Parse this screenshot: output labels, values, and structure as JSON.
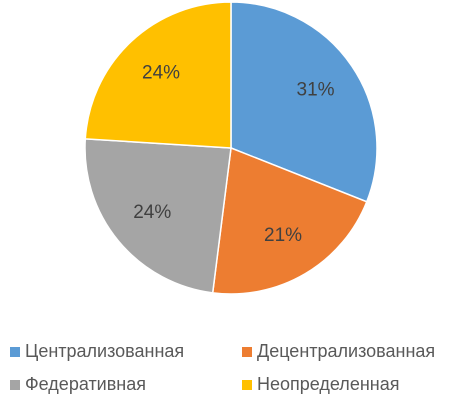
{
  "chart_data": {
    "type": "pie",
    "categories": [
      "Централизованная",
      "Децентрализованная",
      "Федеративная",
      "Неопределенная"
    ],
    "values": [
      31,
      21,
      24,
      24
    ],
    "value_labels": [
      "31%",
      "21%",
      "24%",
      "24%"
    ],
    "colors": [
      "#5b9bd5",
      "#ed7d31",
      "#a5a5a5",
      "#ffc000"
    ]
  }
}
